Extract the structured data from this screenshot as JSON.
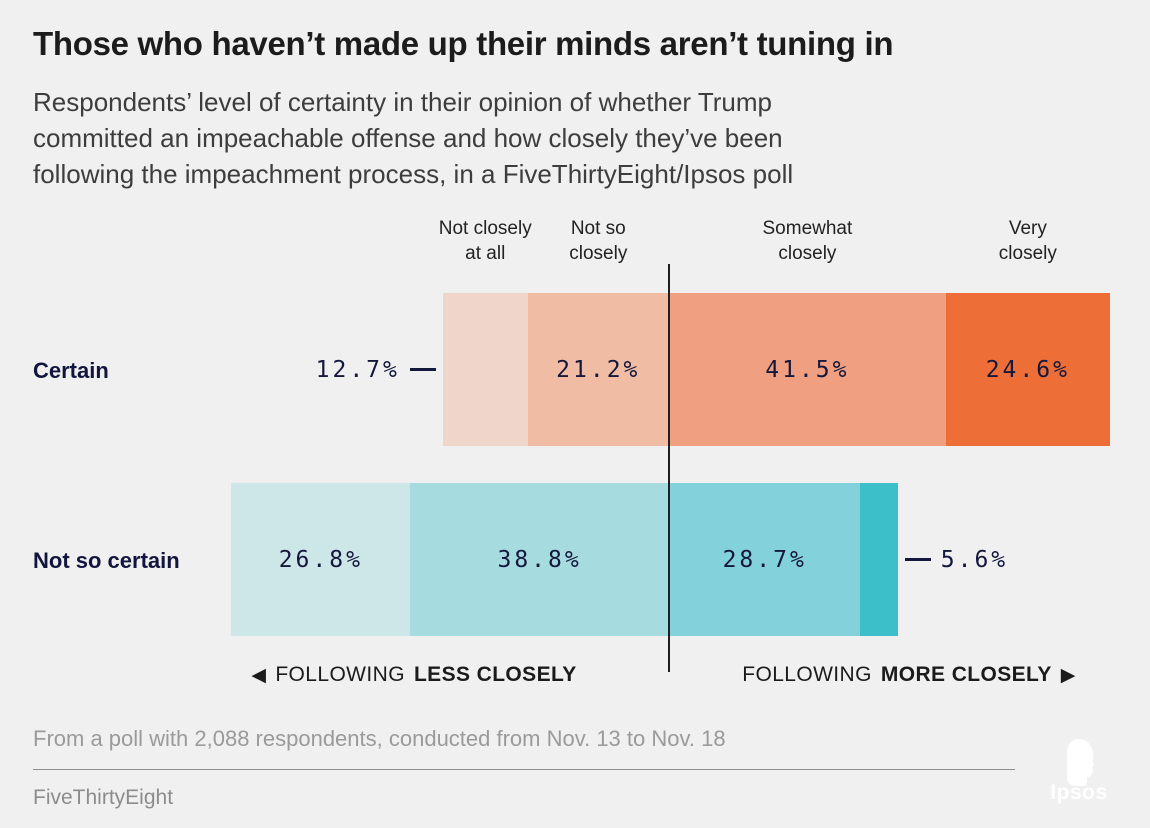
{
  "title": "Those who haven’t made up their minds aren’t tuning in",
  "subtitle": "Respondents’ level of certainty in their opinion of whether Trump\ncommitted an impeachable offense and how closely they’ve been\nfollowing the impeachment process, in a FiveThirtyEight/Ipsos poll",
  "chart_data": {
    "type": "bar",
    "variant": "horizontal-diverging-stacked",
    "value_unit": "%",
    "categories": [
      "Not closely\nat all",
      "Not so\nclosely",
      "Somewhat\nclosely",
      "Very\nclosely"
    ],
    "divider_note": "vertical line separates the two less-closely categories from the two more-closely categories",
    "series": [
      {
        "name": "Certain",
        "values": [
          12.7,
          21.2,
          41.5,
          24.6
        ],
        "labels": [
          "12.7%",
          "21.2%",
          "41.5%",
          "24.6%"
        ],
        "colors": [
          "#f0d6ca",
          "#f1bca4",
          "#f0a081",
          "#ed6e37"
        ],
        "outside_label": {
          "index": 0,
          "side": "left"
        }
      },
      {
        "name": "Not so certain",
        "values": [
          26.8,
          38.8,
          28.7,
          5.6
        ],
        "labels": [
          "26.8%",
          "38.8%",
          "28.7%",
          "5.6%"
        ],
        "colors": [
          "#cde7e8",
          "#a6dcdf",
          "#83d1da",
          "#3dbfca"
        ],
        "outside_label": {
          "index": 3,
          "side": "right"
        }
      }
    ]
  },
  "direction_labels": {
    "left": {
      "arrow": "◀",
      "prefix": "FOLLOWING",
      "bold": "LESS CLOSELY"
    },
    "right": {
      "arrow": "▶",
      "prefix": "FOLLOWING",
      "bold": "MORE CLOSELY"
    }
  },
  "footnote": "From a poll with 2,088 respondents, conducted from Nov. 13 to Nov. 18",
  "source": "FiveThirtyEight",
  "logo": {
    "label": "Ipsos",
    "blue": "#3F3D8F",
    "teal": "#00A3A1"
  }
}
